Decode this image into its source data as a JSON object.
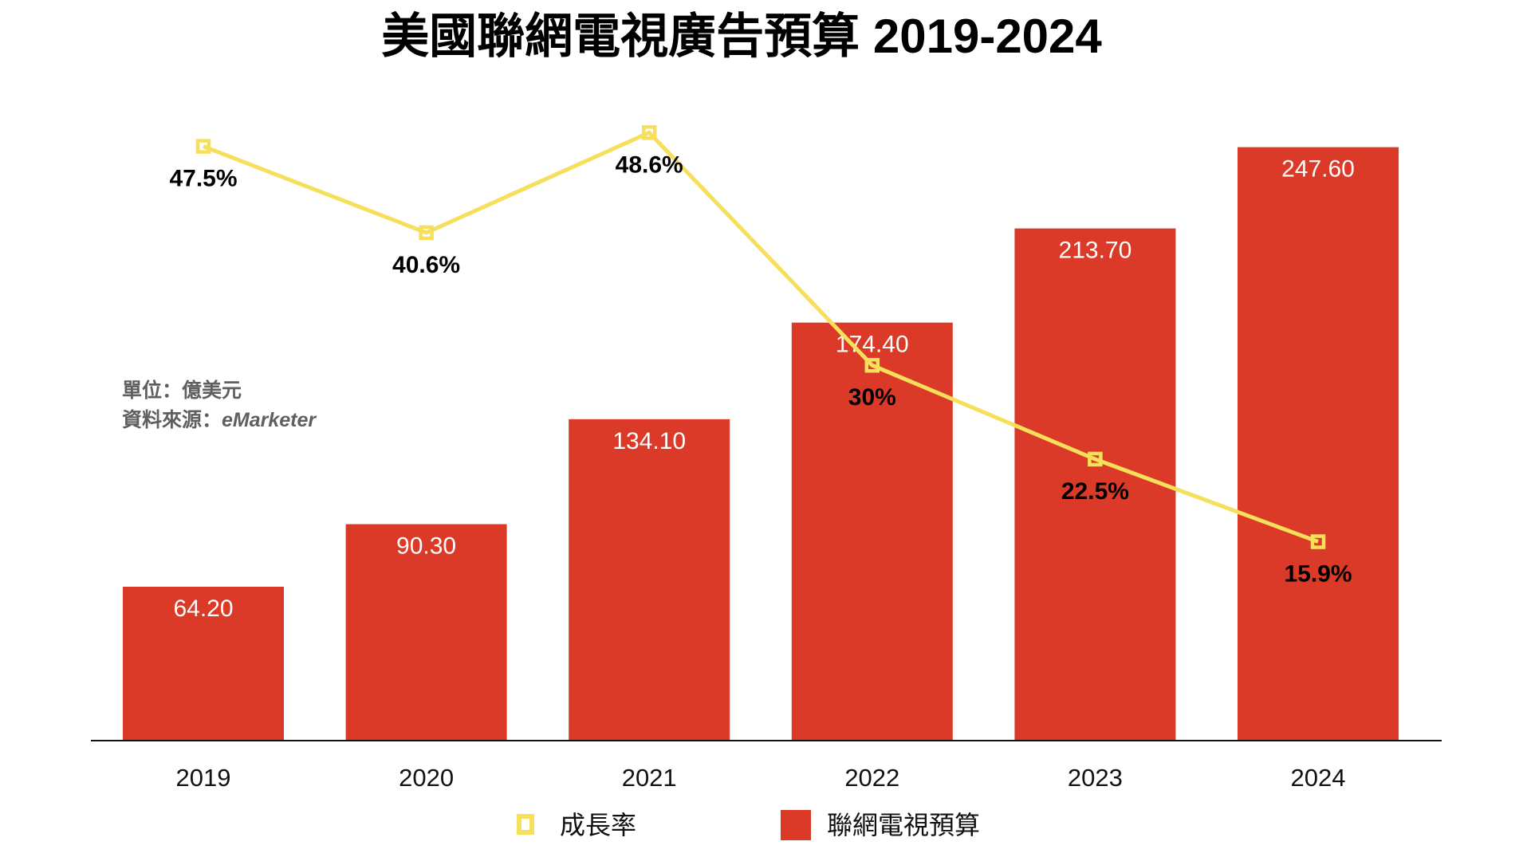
{
  "chart_data": {
    "type": "bar",
    "title": "美國聯網電視廣告預算 2019-2024",
    "xlabel": "",
    "ylabel": "",
    "categories": [
      "2019",
      "2020",
      "2021",
      "2022",
      "2023",
      "2024"
    ],
    "series": [
      {
        "name": "聯網電視預算",
        "type": "bar",
        "axis": "primary",
        "values": [
          64.2,
          90.3,
          134.1,
          174.4,
          213.7,
          247.6
        ],
        "labels": [
          "64.20",
          "90.30",
          "134.10",
          "174.40",
          "213.70",
          "247.60"
        ],
        "color": "#DA3A27"
      },
      {
        "name": "成長率",
        "type": "line",
        "axis": "secondary",
        "values": [
          47.5,
          40.6,
          48.6,
          30.0,
          22.5,
          15.9
        ],
        "labels": [
          "47.5%",
          "40.6%",
          "48.6%",
          "30%",
          "22.5%",
          "15.9%"
        ],
        "unit": "%",
        "color": "#F5DF5B",
        "marker": "hollow-square"
      }
    ],
    "ylim": [
      0,
      309
    ],
    "y2lim": [
      0,
      59.2
    ],
    "grid": false,
    "axes_visible": {
      "y": false,
      "y2": false,
      "x_baseline": true
    },
    "legend": {
      "position": "bottom-center",
      "entries": [
        {
          "label": "成長率",
          "marker": "hollow-square",
          "color": "#F5DF5B"
        },
        {
          "label": "聯網電視預算",
          "marker": "filled-square",
          "color": "#DA3A27"
        }
      ]
    },
    "annotations": [
      {
        "text": "單位：億美元",
        "position": "left-middle"
      },
      {
        "label": "資料來源：",
        "source": "eMarketer",
        "position": "left-middle"
      }
    ]
  },
  "notes": {
    "unit": "單位：億美元",
    "source_label": "資料來源：",
    "source_name": "eMarketer"
  }
}
